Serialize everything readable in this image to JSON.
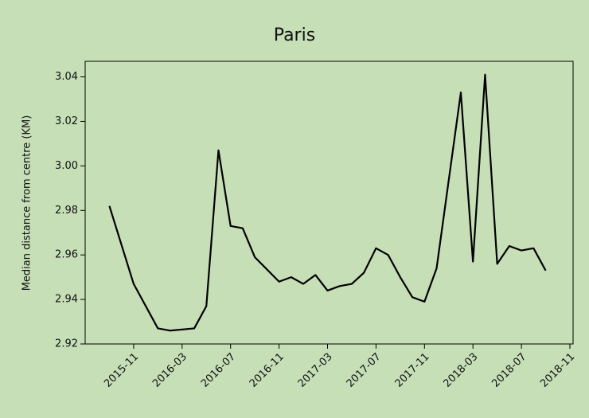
{
  "chart_data": {
    "type": "line",
    "title": "Paris",
    "ylabel": "Median distance from centre (KM)",
    "x": [
      "2015-09",
      "2015-11",
      "2016-01",
      "2016-02",
      "2016-04",
      "2016-05",
      "2016-06",
      "2016-07",
      "2016-08",
      "2016-09",
      "2016-11",
      "2016-12",
      "2017-01",
      "2017-02",
      "2017-03",
      "2017-04",
      "2017-05",
      "2017-06",
      "2017-07",
      "2017-08",
      "2017-09",
      "2017-10",
      "2017-11",
      "2017-12",
      "2018-02",
      "2018-03",
      "2018-04",
      "2018-05",
      "2018-06",
      "2018-07",
      "2018-08",
      "2018-09"
    ],
    "series": [
      {
        "name": "Paris",
        "color": "#000000",
        "values": [
          2.982,
          2.947,
          2.927,
          2.926,
          2.927,
          2.937,
          3.007,
          2.973,
          2.972,
          2.959,
          2.948,
          2.95,
          2.947,
          2.951,
          2.944,
          2.946,
          2.947,
          2.952,
          2.963,
          2.96,
          2.95,
          2.941,
          2.939,
          2.954,
          3.033,
          2.957,
          3.041,
          2.956,
          2.964,
          2.962,
          2.963,
          2.953
        ]
      }
    ],
    "xlim": [
      "2015-07",
      "2018-11"
    ],
    "xticks": [
      "2015-11",
      "2016-03",
      "2016-07",
      "2016-11",
      "2017-03",
      "2017-07",
      "2017-11",
      "2018-03",
      "2018-07",
      "2018-11"
    ],
    "ylim": [
      2.92,
      3.047
    ],
    "yticks": [
      2.92,
      2.94,
      2.96,
      2.98,
      {
        "value": 3.0,
        "label": "3.00"
      },
      3.02,
      3.04
    ],
    "background": "#c6dfb7"
  }
}
